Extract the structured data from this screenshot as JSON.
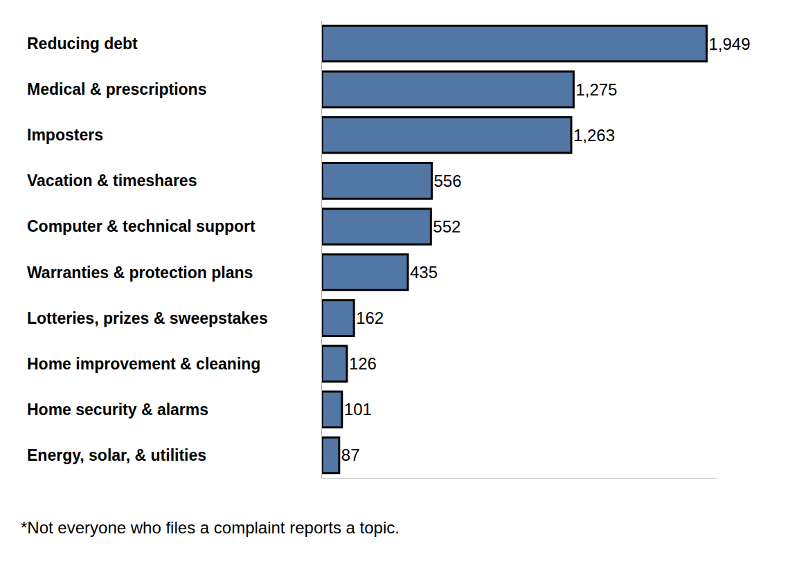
{
  "chart_data": {
    "type": "bar",
    "orientation": "horizontal",
    "categories": [
      "Reducing debt",
      "Medical & prescriptions",
      "Imposters",
      "Vacation & timeshares",
      "Computer & technical support",
      "Warranties & protection plans",
      "Lotteries, prizes & sweepstakes",
      "Home improvement & cleaning",
      "Home security & alarms",
      "Energy, solar, & utilities"
    ],
    "values": [
      1949,
      1275,
      1263,
      556,
      552,
      435,
      162,
      126,
      101,
      87
    ],
    "value_labels": [
      "1,949",
      "1,275",
      "1,263",
      "556",
      "552",
      "435",
      "162",
      "126",
      "101",
      "87"
    ],
    "color": "#5377a5",
    "xlim": [
      0,
      2000
    ],
    "xticks": [],
    "tick_labels": "y",
    "data_labels": true,
    "grid": false,
    "annotations": [
      "*Not everyone who files a complaint reports a topic."
    ]
  }
}
